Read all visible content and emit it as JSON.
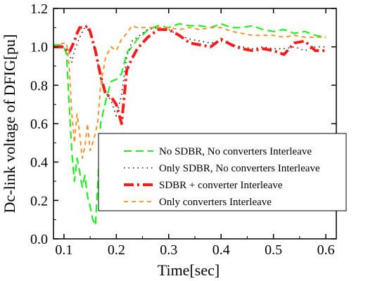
{
  "chart_data": {
    "type": "line",
    "title": "",
    "xlabel": "Time[sec]",
    "ylabel": "Dc-link voltage of DFIG[pu]",
    "xlim": [
      0.08,
      0.62
    ],
    "ylim": [
      0.0,
      1.2
    ],
    "xticks": [
      "0.1",
      "0.2",
      "0.3",
      "0.4",
      "0.5",
      "0.6"
    ],
    "yticks": [
      "0.0",
      "0.2",
      "0.4",
      "0.6",
      "0.8",
      "1.0",
      "1.2"
    ],
    "grid": false,
    "legend_position": "center-right",
    "series": [
      {
        "name": "No SDBR, No converters Interleave",
        "color": "#22ee22",
        "style": "dashed",
        "x": [
          0.08,
          0.09,
          0.1,
          0.105,
          0.11,
          0.115,
          0.12,
          0.125,
          0.13,
          0.135,
          0.14,
          0.145,
          0.15,
          0.155,
          0.16,
          0.165,
          0.17,
          0.18,
          0.19,
          0.2,
          0.21,
          0.22,
          0.23,
          0.24,
          0.25,
          0.26,
          0.27,
          0.28,
          0.3,
          0.32,
          0.34,
          0.36,
          0.38,
          0.4,
          0.42,
          0.44,
          0.46,
          0.48,
          0.5,
          0.52,
          0.54,
          0.56,
          0.58,
          0.6
        ],
        "y": [
          1.01,
          1.01,
          1.0,
          0.96,
          0.7,
          0.45,
          0.3,
          0.42,
          0.35,
          0.27,
          0.33,
          0.22,
          0.17,
          0.1,
          0.07,
          0.3,
          0.6,
          0.72,
          0.82,
          0.83,
          0.86,
          0.97,
          1.0,
          1.04,
          1.06,
          1.09,
          1.1,
          1.11,
          1.1,
          1.12,
          1.11,
          1.11,
          1.1,
          1.12,
          1.1,
          1.1,
          1.11,
          1.09,
          1.08,
          1.09,
          1.07,
          1.08,
          1.06,
          1.05
        ]
      },
      {
        "name": "Only SDBR, No converters Interleave",
        "color": "#111111",
        "style": "dotted",
        "x": [
          0.08,
          0.1,
          0.11,
          0.115,
          0.12,
          0.13,
          0.14,
          0.15,
          0.16,
          0.17,
          0.18,
          0.19,
          0.2,
          0.21,
          0.22,
          0.23,
          0.24,
          0.26,
          0.28,
          0.3,
          0.32,
          0.34,
          0.36,
          0.38,
          0.4,
          0.42,
          0.44,
          0.46,
          0.48,
          0.5,
          0.52,
          0.54,
          0.56,
          0.58,
          0.6
        ],
        "y": [
          1.0,
          1.0,
          0.97,
          0.92,
          0.98,
          1.05,
          1.1,
          1.08,
          0.98,
          0.84,
          0.76,
          0.72,
          0.64,
          0.75,
          0.95,
          1.03,
          1.05,
          1.09,
          1.1,
          1.09,
          1.06,
          1.04,
          1.03,
          1.02,
          1.03,
          1.01,
          1.0,
          0.99,
          1.0,
          0.99,
          0.99,
          1.0,
          0.98,
          1.0,
          1.0
        ]
      },
      {
        "name": "SDBR + converter Interleave",
        "color": "#ff1a1a",
        "style": "dashdot",
        "x": [
          0.08,
          0.1,
          0.11,
          0.12,
          0.125,
          0.13,
          0.14,
          0.145,
          0.15,
          0.16,
          0.17,
          0.18,
          0.19,
          0.2,
          0.21,
          0.22,
          0.23,
          0.24,
          0.26,
          0.28,
          0.3,
          0.32,
          0.34,
          0.36,
          0.38,
          0.4,
          0.42,
          0.44,
          0.46,
          0.48,
          0.5,
          0.52,
          0.54,
          0.56,
          0.58,
          0.6
        ],
        "y": [
          1.0,
          1.0,
          0.97,
          1.03,
          1.07,
          1.1,
          1.1,
          1.11,
          1.08,
          0.98,
          0.85,
          0.75,
          0.74,
          0.7,
          0.6,
          0.88,
          0.94,
          0.99,
          1.05,
          1.09,
          1.09,
          1.06,
          1.02,
          1.01,
          1.0,
          1.04,
          1.01,
          0.99,
          0.98,
          0.99,
          0.98,
          0.96,
          1.02,
          1.03,
          0.98,
          0.98
        ]
      },
      {
        "name": "Only converters Interleave",
        "color": "#ff8a1a",
        "style": "dashed-short",
        "x": [
          0.08,
          0.1,
          0.105,
          0.11,
          0.115,
          0.12,
          0.125,
          0.13,
          0.135,
          0.14,
          0.145,
          0.15,
          0.155,
          0.16,
          0.165,
          0.17,
          0.18,
          0.19,
          0.2,
          0.21,
          0.22,
          0.23,
          0.24,
          0.26,
          0.28,
          0.3,
          0.32,
          0.34,
          0.36,
          0.38,
          0.4,
          0.42,
          0.44,
          0.46,
          0.48,
          0.5,
          0.52,
          0.54,
          0.56,
          0.58,
          0.6
        ],
        "y": [
          1.0,
          1.02,
          1.02,
          0.9,
          0.65,
          0.5,
          0.65,
          0.55,
          0.42,
          0.48,
          0.6,
          0.46,
          0.5,
          0.55,
          0.62,
          0.8,
          0.95,
          1.0,
          0.98,
          1.04,
          1.07,
          1.11,
          1.1,
          1.1,
          1.1,
          1.1,
          1.09,
          1.1,
          1.09,
          1.1,
          1.1,
          1.08,
          1.07,
          1.06,
          1.06,
          1.06,
          1.05,
          1.06,
          1.05,
          1.05,
          1.05
        ]
      }
    ]
  }
}
